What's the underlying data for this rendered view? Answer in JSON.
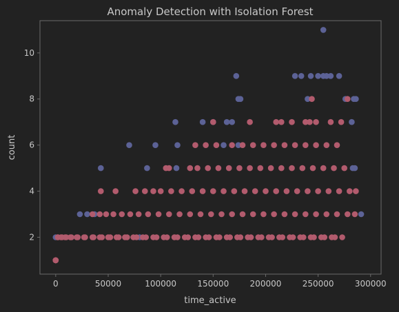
{
  "chart_data": {
    "type": "scatter",
    "title": "Anomaly Detection with Isolation Forest",
    "xlabel": "time_active",
    "ylabel": "count",
    "xlim": [
      -15000,
      310000
    ],
    "ylim": [
      0.4,
      11.4
    ],
    "xticks": [
      0,
      50000,
      100000,
      150000,
      200000,
      250000,
      300000
    ],
    "xtick_labels": [
      "0",
      "50000",
      "100000",
      "150000",
      "200000",
      "250000",
      "300000"
    ],
    "yticks": [
      2,
      4,
      6,
      8,
      10
    ],
    "ytick_labels": [
      "2",
      "4",
      "6",
      "8",
      "10"
    ],
    "grid": false,
    "legend": "none",
    "colors": {
      "background": "#222222",
      "axes": "#6b6b6b",
      "text": "#c8c8c8",
      "anomaly": "#5c6296",
      "normal": "#b25b6d"
    },
    "series": [
      {
        "color": "#5c6296",
        "x": [
          255000,
          172000,
          228000,
          234000,
          243000,
          250000,
          255000,
          258000,
          262000,
          270000,
          174000,
          176000,
          240000,
          276000,
          284000,
          286000,
          114000,
          140000,
          150000,
          163000,
          168000,
          282000,
          70000,
          95000,
          116000,
          160000,
          174000,
          43000,
          87000,
          115000,
          283000,
          285000,
          23000,
          30000,
          37000,
          291000,
          0,
          80000
        ],
        "y": [
          11,
          9,
          9,
          9,
          9,
          9,
          9,
          9,
          9,
          9,
          8,
          8,
          8,
          8,
          8,
          8,
          7,
          7,
          7,
          7,
          7,
          7,
          6,
          6,
          6,
          6,
          6,
          5,
          5,
          5,
          5,
          5,
          3,
          3,
          3,
          3,
          2,
          2
        ]
      },
      {
        "color": "#b25b6d",
        "x": [
          0,
          0,
          0,
          0,
          0,
          2000,
          5000,
          9000,
          14000,
          20000,
          27000,
          35000,
          42000,
          50000,
          58000,
          66000,
          74000,
          83000,
          93000,
          103000,
          113000,
          123000,
          133000,
          143000,
          153000,
          163000,
          173000,
          183000,
          193000,
          203000,
          213000,
          223000,
          233000,
          243000,
          253000,
          263000,
          273000,
          2000,
          6000,
          10000,
          15000,
          21000,
          28000,
          36000,
          44000,
          52000,
          60000,
          68000,
          77000,
          86000,
          96000,
          106000,
          116000,
          126000,
          136000,
          146000,
          156000,
          166000,
          176000,
          186000,
          196000,
          206000,
          216000,
          226000,
          236000,
          246000,
          256000,
          266000,
          35000,
          42000,
          48000,
          55000,
          63000,
          71000,
          79000,
          88000,
          98000,
          108000,
          118000,
          128000,
          138000,
          148000,
          158000,
          168000,
          178000,
          188000,
          198000,
          208000,
          218000,
          228000,
          238000,
          248000,
          258000,
          268000,
          278000,
          285000,
          43000,
          57000,
          76000,
          85000,
          93000,
          100000,
          110000,
          120000,
          130000,
          140000,
          150000,
          160000,
          170000,
          180000,
          190000,
          200000,
          210000,
          220000,
          230000,
          240000,
          250000,
          260000,
          270000,
          280000,
          286000,
          105000,
          108000,
          128000,
          135000,
          145000,
          155000,
          165000,
          175000,
          185000,
          195000,
          205000,
          215000,
          225000,
          235000,
          245000,
          255000,
          265000,
          275000,
          133000,
          143000,
          153000,
          168000,
          178000,
          188000,
          198000,
          208000,
          218000,
          228000,
          238000,
          248000,
          258000,
          268000,
          150000,
          185000,
          210000,
          215000,
          225000,
          238000,
          242000,
          248000,
          262000,
          272000,
          244000,
          278000
        ],
        "y": [
          1,
          1,
          1,
          1,
          1,
          2,
          2,
          2,
          2,
          2,
          2,
          2,
          2,
          2,
          2,
          2,
          2,
          2,
          2,
          2,
          2,
          2,
          2,
          2,
          2,
          2,
          2,
          2,
          2,
          2,
          2,
          2,
          2,
          2,
          2,
          2,
          2,
          2,
          2,
          2,
          2,
          2,
          2,
          2,
          2,
          2,
          2,
          2,
          2,
          2,
          2,
          2,
          2,
          2,
          2,
          2,
          2,
          2,
          2,
          2,
          2,
          2,
          2,
          2,
          2,
          2,
          2,
          2,
          3,
          3,
          3,
          3,
          3,
          3,
          3,
          3,
          3,
          3,
          3,
          3,
          3,
          3,
          3,
          3,
          3,
          3,
          3,
          3,
          3,
          3,
          3,
          3,
          3,
          3,
          3,
          3,
          4,
          4,
          4,
          4,
          4,
          4,
          4,
          4,
          4,
          4,
          4,
          4,
          4,
          4,
          4,
          4,
          4,
          4,
          4,
          4,
          4,
          4,
          4,
          4,
          4,
          5,
          5,
          5,
          5,
          5,
          5,
          5,
          5,
          5,
          5,
          5,
          5,
          5,
          5,
          5,
          5,
          5,
          5,
          6,
          6,
          6,
          6,
          6,
          6,
          6,
          6,
          6,
          6,
          6,
          6,
          6,
          6,
          7,
          7,
          7,
          7,
          7,
          7,
          7,
          7,
          7,
          7,
          8,
          8
        ]
      }
    ]
  }
}
